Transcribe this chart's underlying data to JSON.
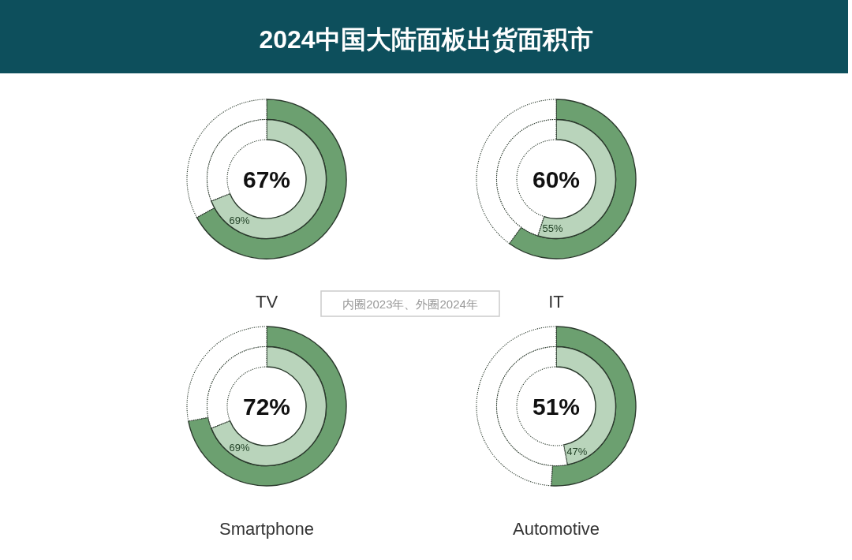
{
  "chart_data": [
    {
      "type": "other",
      "title": "2024中国大陆面板出货面积市",
      "annotations": [
        "内圈2023年、外圈2024年"
      ]
    },
    {
      "type": "donut",
      "title": "TV",
      "categories": [
        null,
        null
      ],
      "series": [
        {
          "values": [
            67,
            33
          ],
          "colors": [
            "#6ca070",
            "#ffffff"
          ],
          "value_labels": [
            "67%",
            null
          ]
        },
        {
          "values": [
            69,
            31
          ],
          "colors": [
            "#b9d4bb",
            "#ffffff"
          ],
          "value_labels": [
            "69%",
            null
          ]
        }
      ]
    },
    {
      "type": "donut",
      "title": "IT",
      "categories": [
        null,
        null
      ],
      "series": [
        {
          "values": [
            60,
            40
          ],
          "colors": [
            "#6ca070",
            "#ffffff"
          ],
          "value_labels": [
            "60%",
            null
          ]
        },
        {
          "values": [
            55,
            45
          ],
          "colors": [
            "#b9d4bb",
            "#ffffff"
          ],
          "value_labels": [
            "55%",
            null
          ]
        }
      ]
    },
    {
      "type": "donut",
      "title": "Smartphone",
      "categories": [
        null,
        null
      ],
      "series": [
        {
          "values": [
            72,
            28
          ],
          "colors": [
            "#6ca070",
            "#ffffff"
          ],
          "value_labels": [
            "72%",
            null
          ]
        },
        {
          "values": [
            69,
            31
          ],
          "colors": [
            "#b9d4bb",
            "#ffffff"
          ],
          "value_labels": [
            "69%",
            null
          ]
        }
      ]
    },
    {
      "type": "donut",
      "title": "Automotive",
      "categories": [
        null,
        null
      ],
      "series": [
        {
          "values": [
            51,
            49
          ],
          "colors": [
            "#6ca070",
            "#ffffff"
          ],
          "value_labels": [
            "51%",
            null
          ]
        },
        {
          "values": [
            47,
            53
          ],
          "colors": [
            "#b9d4bb",
            "#ffffff"
          ],
          "value_labels": [
            "47%",
            null
          ]
        }
      ]
    }
  ]
}
